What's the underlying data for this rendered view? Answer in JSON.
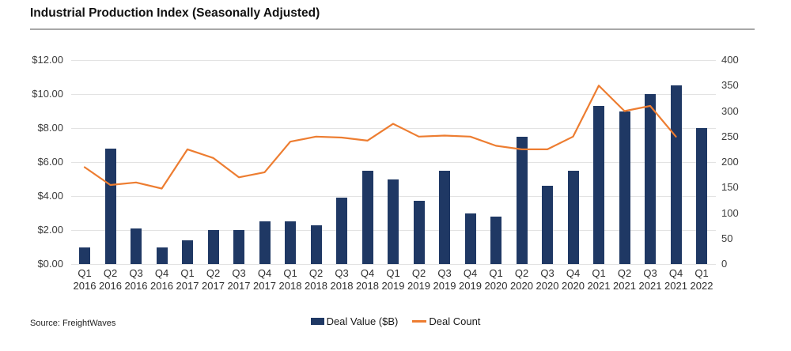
{
  "title": "Industrial Production Index (Seasonally Adjusted)",
  "source": "Source: FreightWaves",
  "colors": {
    "bar": "#1F3864",
    "line": "#ED7D31",
    "grid": "#e3e3e3",
    "title_rule": "#a8a8a8"
  },
  "chart_data": {
    "type": "bar",
    "subtype": "combo-bar-line",
    "title": "Industrial Production Index (Seasonally Adjusted)",
    "categories": [
      "Q1 2016",
      "Q2 2016",
      "Q3 2016",
      "Q4 2016",
      "Q1 2017",
      "Q2 2017",
      "Q3 2017",
      "Q4 2017",
      "Q1 2018",
      "Q2 2018",
      "Q3 2018",
      "Q4 2018",
      "Q1 2019",
      "Q2 2019",
      "Q3 2019",
      "Q4 2019",
      "Q1 2020",
      "Q2 2020",
      "Q3 2020",
      "Q4 2020",
      "Q1 2021",
      "Q2 2021",
      "Q3 2021",
      "Q4 2021",
      "Q1 2022"
    ],
    "series": [
      {
        "name": "Deal Value ($B)",
        "type": "bar",
        "axis": "left",
        "values": [
          1.0,
          6.8,
          2.1,
          1.0,
          1.4,
          2.0,
          2.0,
          2.5,
          2.5,
          2.3,
          3.9,
          5.5,
          5.0,
          3.7,
          5.5,
          3.0,
          2.8,
          7.5,
          4.6,
          5.5,
          9.3,
          9.0,
          10.0,
          10.5,
          8.0
        ]
      },
      {
        "name": "Deal Count",
        "type": "line",
        "axis": "right",
        "values": [
          190,
          155,
          160,
          148,
          225,
          208,
          170,
          180,
          240,
          250,
          248,
          242,
          275,
          250,
          252,
          250,
          232,
          225,
          225,
          250,
          350,
          300,
          310,
          250,
          null
        ]
      }
    ],
    "left_axis": {
      "min": 0,
      "max": 12,
      "tick_values": [
        0,
        2,
        4,
        6,
        8,
        10,
        12
      ],
      "tick_labels": [
        "$0.00",
        "$2.00",
        "$4.00",
        "$6.00",
        "$8.00",
        "$10.00",
        "$12.00"
      ]
    },
    "right_axis": {
      "min": 0,
      "max": 400,
      "tick_values": [
        0,
        50,
        100,
        150,
        200,
        250,
        300,
        350,
        400
      ],
      "tick_labels": [
        "0",
        "50",
        "100",
        "150",
        "200",
        "250",
        "300",
        "350",
        "400"
      ]
    },
    "grid": true,
    "legend_position": "bottom"
  }
}
